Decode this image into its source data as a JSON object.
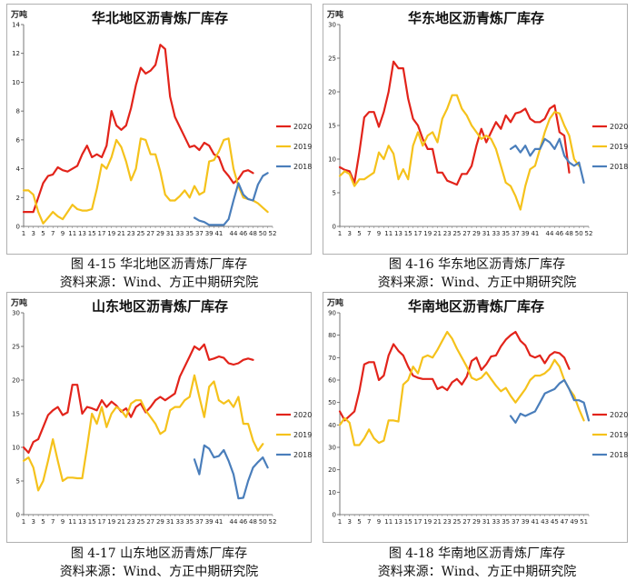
{
  "charts": [
    {
      "caption": "图 4-15 华北地区沥青炼厂库存",
      "source": "资料来源：Wind、方正中期研究院",
      "chart_data": {
        "type": "line",
        "title": "华北地区沥青炼厂库存",
        "unit": "万吨",
        "ylim": [
          0,
          14
        ],
        "yticks": [
          0,
          2,
          4,
          6,
          8,
          10,
          12,
          14
        ],
        "xticks": [
          1,
          3,
          5,
          7,
          9,
          11,
          13,
          15,
          17,
          19,
          21,
          23,
          25,
          27,
          29,
          31,
          33,
          35,
          37,
          39,
          41,
          44,
          46,
          48,
          50,
          52
        ],
        "legend_position": "right",
        "series": [
          {
            "name": "2020",
            "color": "#e2231a",
            "start": 1,
            "values": [
              1.0,
              1.0,
              1.0,
              2.0,
              3.0,
              3.5,
              3.6,
              4.1,
              3.9,
              3.8,
              4.0,
              4.2,
              5.0,
              5.6,
              4.8,
              5.0,
              4.8,
              5.6,
              8.0,
              7.0,
              6.7,
              7.0,
              8.2,
              9.8,
              11.0,
              10.6,
              10.8,
              11.2,
              12.6,
              12.3,
              9.0,
              7.6,
              6.9,
              6.2,
              5.5,
              5.6,
              5.3,
              5.8,
              5.6,
              5.0,
              4.8,
              3.9,
              3.5,
              3.0,
              3.3,
              3.8,
              3.9,
              3.7
            ]
          },
          {
            "name": "2019",
            "color": "#f5c21b",
            "start": 1,
            "values": [
              2.5,
              2.5,
              2.2,
              1.0,
              0.2,
              0.6,
              1.0,
              0.7,
              0.5,
              1.0,
              1.5,
              1.2,
              1.1,
              1.1,
              1.2,
              2.6,
              4.3,
              4.0,
              4.8,
              6.0,
              5.5,
              4.5,
              3.2,
              4.0,
              6.1,
              6.0,
              5.0,
              5.0,
              3.8,
              2.2,
              1.8,
              1.8,
              2.1,
              2.5,
              2.0,
              2.8,
              2.2,
              2.4,
              4.5,
              4.6,
              5.2,
              6.0,
              6.1,
              4.0,
              2.8,
              2.0,
              1.9,
              1.8,
              1.6,
              1.3,
              1.0
            ]
          },
          {
            "name": "2018",
            "color": "#4a7ebb",
            "start": 36,
            "values": [
              0.6,
              0.4,
              0.3,
              0.1,
              0.1,
              0.1,
              0.1,
              0.5,
              1.8,
              3.0,
              2.2,
              1.9,
              1.8,
              2.9,
              3.5,
              3.7
            ]
          }
        ]
      }
    },
    {
      "caption": "图 4-16 华东地区沥青炼厂库存",
      "source": "资料来源：Wind、方正中期研究院",
      "chart_data": {
        "type": "line",
        "title": "华东地区沥青炼厂库存",
        "unit": "万吨",
        "ylim": [
          0,
          30
        ],
        "yticks": [
          0,
          5,
          10,
          15,
          20,
          25,
          30
        ],
        "xticks": [
          1,
          3,
          5,
          7,
          9,
          11,
          13,
          15,
          17,
          19,
          21,
          23,
          25,
          27,
          29,
          31,
          33,
          35,
          37,
          39,
          41,
          44,
          46,
          48,
          50,
          52
        ],
        "legend_position": "right",
        "series": [
          {
            "name": "2020",
            "color": "#e2231a",
            "start": 1,
            "values": [
              8.8,
              8.4,
              8.2,
              6.5,
              11.0,
              16.2,
              17.0,
              17.0,
              14.8,
              17.0,
              20.0,
              24.5,
              23.5,
              23.5,
              19.0,
              16.0,
              15.0,
              13.0,
              11.5,
              11.5,
              8.0,
              8.0,
              6.8,
              6.5,
              6.2,
              7.8,
              7.8,
              9.0,
              12.0,
              14.5,
              12.5,
              14.0,
              15.5,
              14.5,
              16.5,
              15.5,
              16.8,
              17.0,
              17.5,
              16.0,
              15.5,
              15.5,
              16.0,
              17.5,
              18.0,
              14.0,
              13.5,
              8.0
            ]
          },
          {
            "name": "2019",
            "color": "#f5c21b",
            "start": 1,
            "values": [
              7.5,
              8.2,
              7.8,
              6.0,
              7.0,
              7.0,
              7.5,
              8.0,
              11.0,
              10.0,
              12.0,
              10.8,
              7.0,
              8.5,
              7.0,
              12.0,
              14.0,
              12.0,
              13.5,
              14.0,
              12.5,
              16.0,
              17.5,
              19.5,
              19.5,
              17.5,
              16.5,
              15.0,
              14.0,
              13.0,
              13.5,
              13.0,
              11.5,
              9.0,
              6.5,
              6.0,
              4.5,
              2.5,
              6.0,
              8.5,
              9.0,
              11.5,
              14.0,
              16.0,
              17.0,
              16.8,
              15.0,
              13.5,
              10.0,
              9.0
            ]
          },
          {
            "name": "2018",
            "color": "#4a7ebb",
            "start": 36,
            "values": [
              11.5,
              12.0,
              11.0,
              12.0,
              10.5,
              11.5,
              11.5,
              13.0,
              12.5,
              11.5,
              13.0,
              10.5,
              9.5,
              9.0,
              9.5,
              6.5
            ]
          }
        ]
      }
    },
    {
      "caption": "图 4-17 山东地区沥青炼厂库存",
      "source": "资料来源：Wind、方正中期研究院",
      "chart_data": {
        "type": "line",
        "title": "山东地区沥青炼厂库存",
        "unit": "万吨",
        "ylim": [
          0,
          30
        ],
        "yticks": [
          0,
          5,
          10,
          15,
          20,
          25,
          30
        ],
        "xticks": [
          1,
          3,
          5,
          7,
          9,
          11,
          13,
          15,
          17,
          19,
          21,
          23,
          25,
          27,
          29,
          31,
          33,
          35,
          37,
          39,
          41,
          44,
          46,
          48,
          50,
          52
        ],
        "legend_position": "right",
        "series": [
          {
            "name": "2020",
            "color": "#e2231a",
            "start": 1,
            "values": [
              10.0,
              9.2,
              10.8,
              11.2,
              13.0,
              14.8,
              15.5,
              16.0,
              14.8,
              15.2,
              19.3,
              19.3,
              15.0,
              16.0,
              15.8,
              15.5,
              17.0,
              16.0,
              16.8,
              16.2,
              15.3,
              15.8,
              14.5,
              16.0,
              16.5,
              15.2,
              16.0,
              17.0,
              17.5,
              17.0,
              17.5,
              18.0,
              20.5,
              22.0,
              23.5,
              25.0,
              24.5,
              25.3,
              23.0,
              23.2,
              23.5,
              23.3,
              22.5,
              22.3,
              22.5,
              23.0,
              23.2,
              23.0
            ]
          },
          {
            "name": "2019",
            "color": "#f5c21b",
            "start": 1,
            "values": [
              8.0,
              8.5,
              7.0,
              3.6,
              5.0,
              8.0,
              11.2,
              8.0,
              5.0,
              5.5,
              5.5,
              5.4,
              5.4,
              10.0,
              15.0,
              13.5,
              16.0,
              13.0,
              15.0,
              16.0,
              15.5,
              14.5,
              16.5,
              17.0,
              17.0,
              15.5,
              14.5,
              13.5,
              12.0,
              12.5,
              15.5,
              16.0,
              16.0,
              17.0,
              17.5,
              20.7,
              17.5,
              14.5,
              19.0,
              19.8,
              17.0,
              16.5,
              17.0,
              16.0,
              17.5,
              13.5,
              13.5,
              11.0,
              9.5,
              10.5
            ]
          },
          {
            "name": "2018",
            "color": "#4a7ebb",
            "start": 36,
            "values": [
              8.2,
              6.0,
              10.3,
              9.8,
              8.5,
              8.7,
              9.6,
              8.0,
              6.0,
              2.4,
              2.5,
              5.0,
              7.0,
              7.8,
              8.5,
              7.0
            ]
          }
        ]
      }
    },
    {
      "caption": "图 4-18 华南地区沥青炼厂库存",
      "source": "资料来源：Wind、方正中期研究院",
      "chart_data": {
        "type": "line",
        "title": "华南地区沥青炼厂库存",
        "unit": "万吨",
        "ylim": [
          0,
          90
        ],
        "yticks": [
          0,
          10,
          20,
          30,
          40,
          50,
          60,
          70,
          80,
          90
        ],
        "xticks": [
          1,
          3,
          5,
          7,
          9,
          11,
          13,
          15,
          17,
          19,
          21,
          23,
          25,
          27,
          29,
          31,
          33,
          35,
          37,
          39,
          41,
          43,
          45,
          47,
          49,
          51
        ],
        "legend_position": "right",
        "series": [
          {
            "name": "2020",
            "color": "#e2231a",
            "start": 1,
            "values": [
              46.0,
              42.0,
              44.0,
              46.0,
              55.0,
              67.0,
              68.0,
              68.0,
              60.0,
              62.0,
              71.0,
              76.0,
              73.0,
              71.0,
              66.0,
              62.0,
              61.0,
              60.5,
              60.5,
              60.5,
              56.0,
              57.0,
              55.5,
              59.0,
              60.5,
              58.0,
              61.5,
              68.5,
              70.0,
              64.5,
              67.0,
              70.5,
              71.0,
              75.0,
              78.0,
              80.0,
              81.5,
              77.5,
              75.5,
              71.0,
              70.0,
              71.0,
              67.5,
              71.0,
              72.5,
              72.0,
              70.0,
              65.0
            ]
          },
          {
            "name": "2019",
            "color": "#f5c21b",
            "start": 1,
            "values": [
              40.0,
              43.0,
              41.0,
              31.0,
              31.0,
              34.0,
              38.0,
              34.0,
              32.0,
              33.0,
              42.0,
              42.0,
              41.5,
              58.0,
              60.0,
              66.0,
              63.0,
              70.0,
              71.0,
              70.0,
              73.5,
              77.5,
              81.5,
              78.5,
              74.0,
              70.0,
              66.0,
              61.0,
              60.0,
              61.0,
              63.5,
              60.5,
              57.5,
              55.0,
              56.5,
              53.0,
              50.0,
              53.0,
              56.0,
              60.0,
              62.0,
              62.0,
              63.0,
              65.0,
              69.0,
              66.0,
              60.0,
              56.0,
              53.0,
              47.0,
              42.0
            ]
          },
          {
            "name": "2018",
            "color": "#4a7ebb",
            "start": 36,
            "values": [
              44.0,
              41.0,
              45.0,
              44.0,
              45.0,
              46.0,
              50.0,
              54.0,
              55.0,
              56.0,
              58.5,
              60.0,
              56.0,
              51.0,
              51.0,
              50.0,
              42.0
            ]
          }
        ]
      }
    }
  ]
}
